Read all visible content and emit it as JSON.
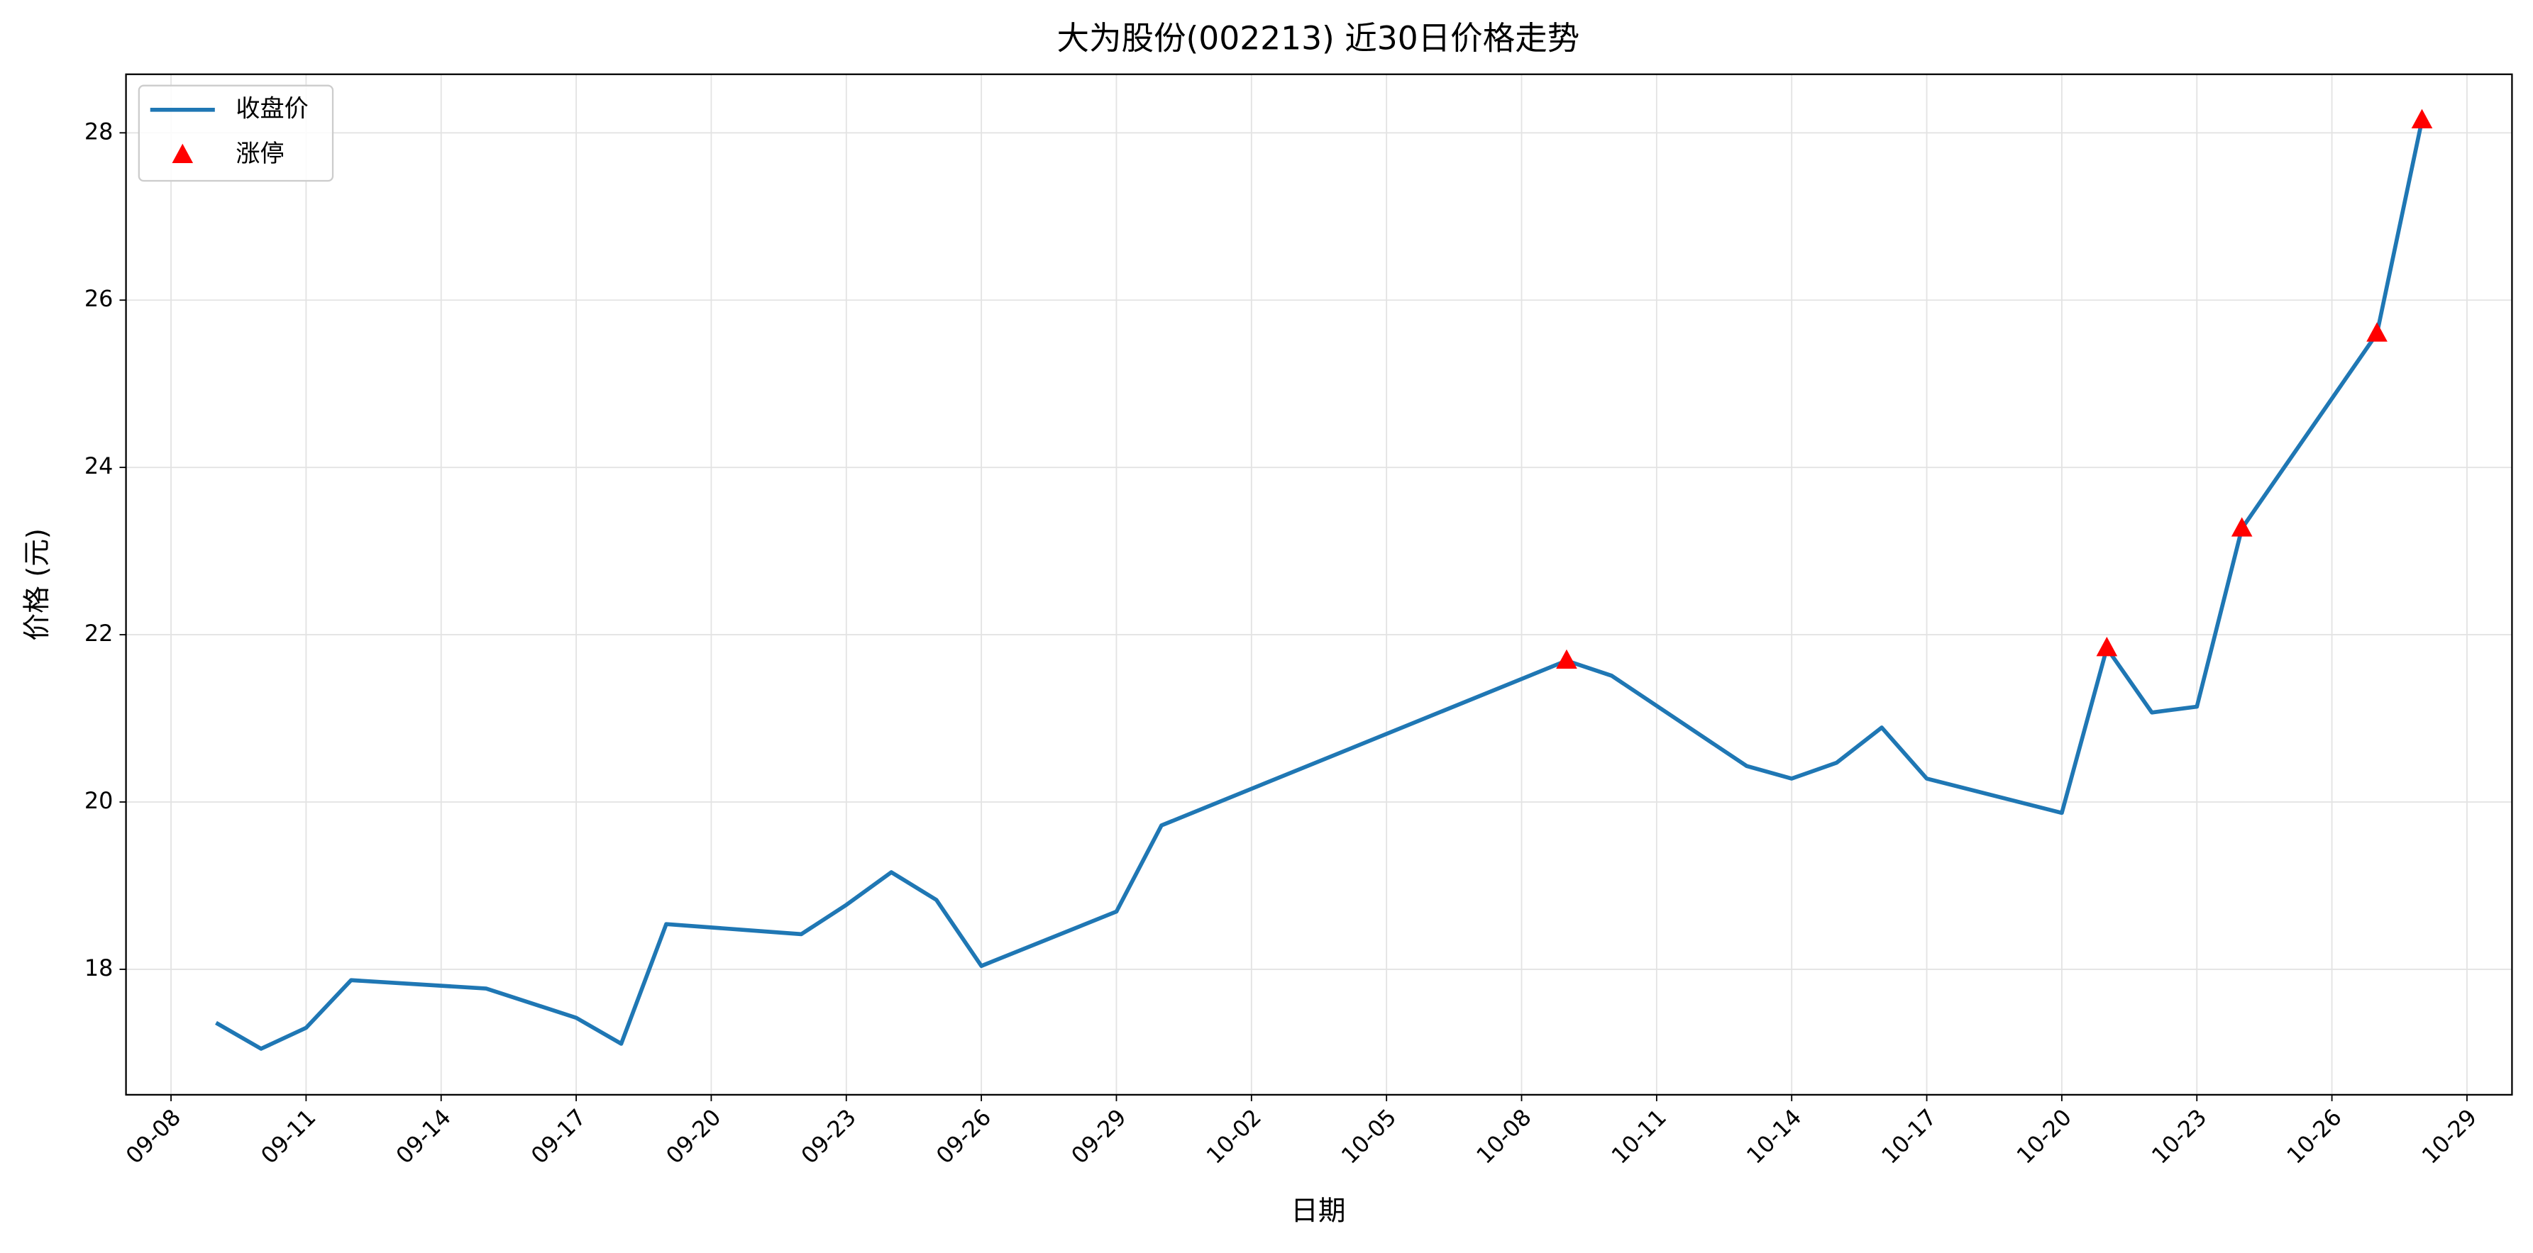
{
  "chart_data": {
    "type": "line",
    "title": "大为股份(002213) 近30日价格走势",
    "xlabel": "日期",
    "ylabel": "价格 (元)",
    "series": [
      {
        "name": "收盘价",
        "color": "#1f77b4",
        "marker": "none",
        "x": [
          "09-09",
          "09-10",
          "09-11",
          "09-12",
          "09-15",
          "09-17",
          "09-18",
          "09-19",
          "09-22",
          "09-23",
          "09-24",
          "09-25",
          "09-26",
          "09-29",
          "09-30",
          "10-09",
          "10-10",
          "10-13",
          "10-14",
          "10-15",
          "10-16",
          "10-17",
          "10-20",
          "10-21",
          "10-22",
          "10-23",
          "10-24",
          "10-27",
          "10-28"
        ],
        "values": [
          17.36,
          17.05,
          17.3,
          17.87,
          17.77,
          17.42,
          17.11,
          18.54,
          18.42,
          18.77,
          19.16,
          18.83,
          18.04,
          18.69,
          19.72,
          21.69,
          21.51,
          20.43,
          20.28,
          20.47,
          20.89,
          20.28,
          19.87,
          21.84,
          21.07,
          21.14,
          23.27,
          25.6,
          28.15
        ]
      },
      {
        "name": "涨停",
        "color": "#ff0000",
        "marker": "triangle",
        "x": [
          "10-09",
          "10-21",
          "10-24",
          "10-27",
          "10-28"
        ],
        "values": [
          21.69,
          21.84,
          23.27,
          25.6,
          28.15
        ]
      }
    ],
    "xlim": [
      "09-07",
      "10-30"
    ],
    "xticks": [
      "09-08",
      "09-11",
      "09-14",
      "09-17",
      "09-20",
      "09-23",
      "09-26",
      "09-29",
      "10-02",
      "10-05",
      "10-08",
      "10-11",
      "10-14",
      "10-17",
      "10-20",
      "10-23",
      "10-26",
      "10-29"
    ],
    "ylim": [
      16.5,
      28.7
    ],
    "yticks": [
      18,
      20,
      22,
      24,
      26,
      28
    ],
    "grid": true,
    "legend": "upper-left"
  }
}
